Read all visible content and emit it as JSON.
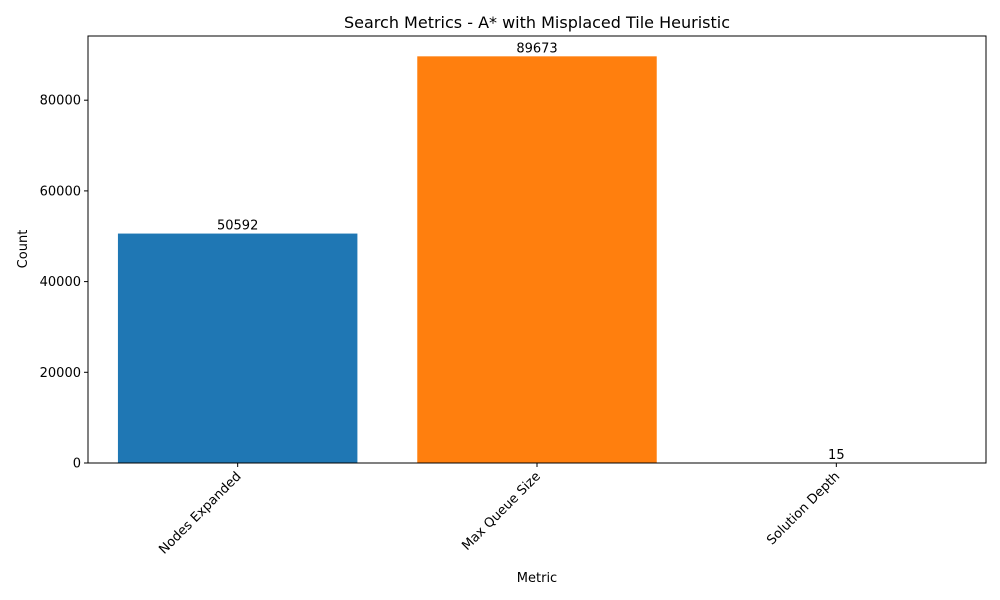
{
  "chart_data": {
    "type": "bar",
    "title": "Search Metrics - A* with Misplaced Tile Heuristic",
    "xlabel": "Metric",
    "ylabel": "Count",
    "categories": [
      "Nodes Expanded",
      "Max Queue Size",
      "Solution Depth"
    ],
    "values": [
      50592,
      89673,
      15
    ],
    "data_labels": [
      "50592",
      "89673",
      "15"
    ],
    "colors": [
      "#1f77b4",
      "#ff7f0e",
      "#2ca02c"
    ],
    "ylim": [
      0,
      94156
    ],
    "yticks": [
      0,
      20000,
      40000,
      60000,
      80000
    ],
    "ytick_labels": [
      "0",
      "20000",
      "40000",
      "60000",
      "80000"
    ],
    "xtick_rotation": 45,
    "grid": false,
    "legend": "none"
  }
}
